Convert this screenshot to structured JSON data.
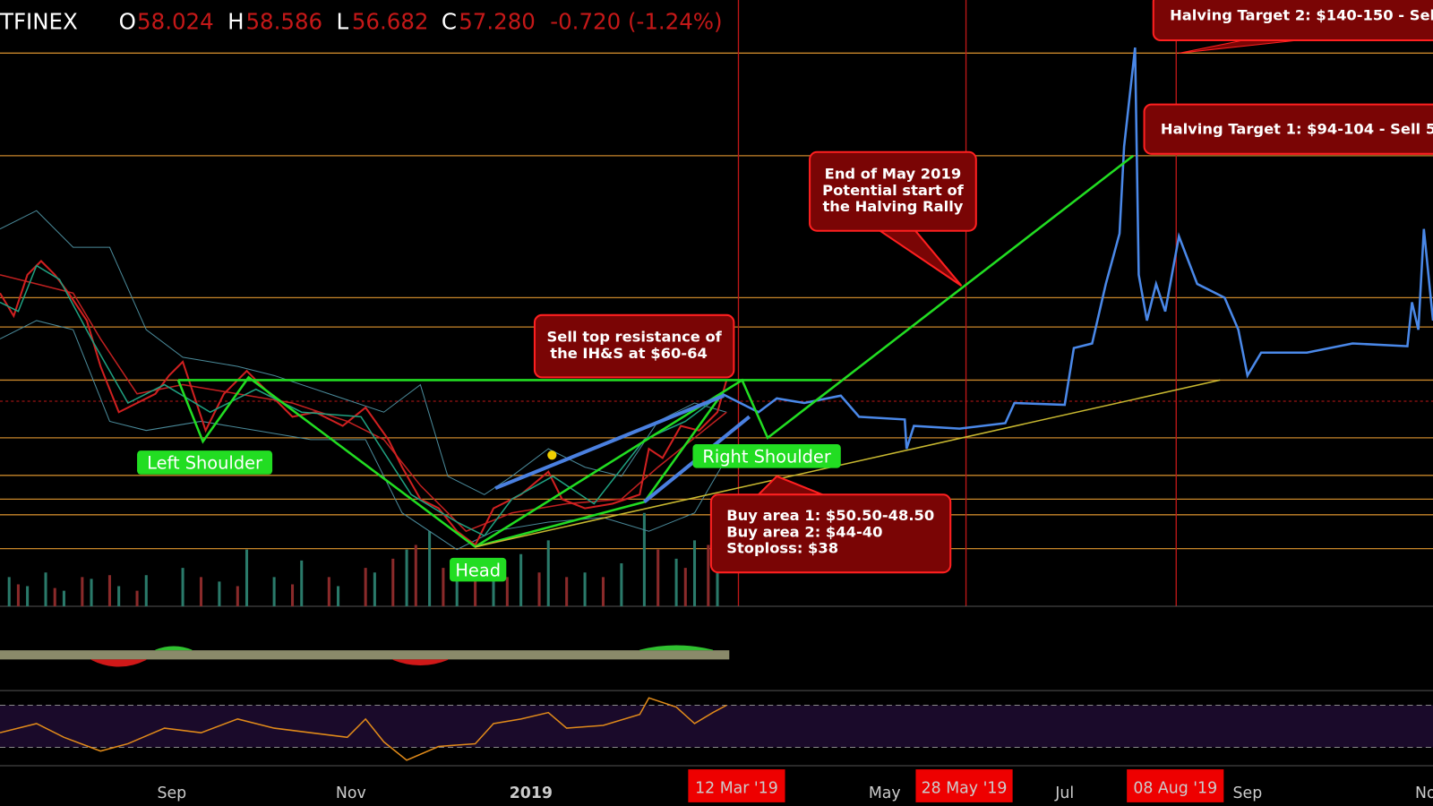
{
  "header": {
    "symbol": "TFINEX",
    "open_label": "O",
    "open": "58.024",
    "high_label": "H",
    "high": "58.586",
    "low_label": "L",
    "low": "56.682",
    "close_label": "C",
    "close": "57.280",
    "change": "-0.720 (-1.24%)"
  },
  "annotations": [
    {
      "lines": [
        "Halving Target 2: $140-150 - Sel"
      ]
    },
    {
      "lines": [
        "Halving Target 1: $94-104 - Sell 5"
      ]
    },
    {
      "lines": [
        "End of May 2019",
        "Potential start of",
        "the Halving Rally"
      ]
    },
    {
      "lines": [
        "Sell top resistance of",
        "the IH&S at $60-64"
      ]
    },
    {
      "lines": [
        "Buy area 1: $50.50-48.50",
        "Buy area 2: $44-40",
        "Stoploss: $38"
      ]
    }
  ],
  "pattern_labels": [
    "Left Shoulder",
    "Head",
    "Right Shoulder"
  ],
  "x_axis": {
    "labels": [
      "Sep",
      "Nov",
      "2019",
      "May",
      "Jul",
      "Sep",
      "No"
    ],
    "highlighted": [
      "12 Mar '19",
      "28 May '19",
      "08 Aug '19"
    ]
  }
}
